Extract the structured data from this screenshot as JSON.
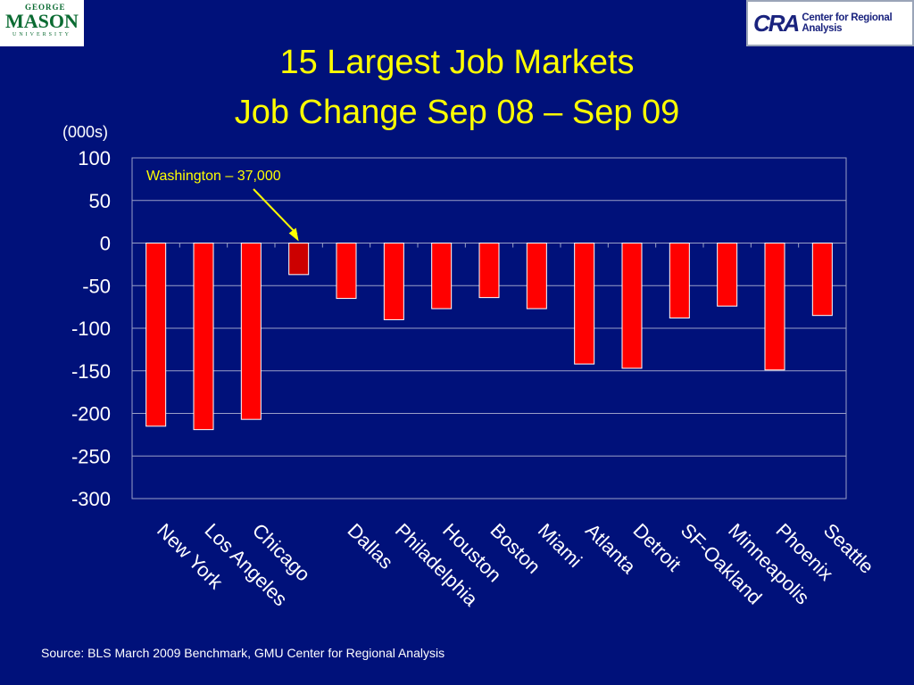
{
  "logos": {
    "gmu": {
      "line1": "GEORGE",
      "line2": "MASON",
      "line3": "UNIVERSITY"
    },
    "cra": {
      "mark": "CRA",
      "text": "Center for Regional Analysis"
    }
  },
  "colors": {
    "background": "#00117a",
    "title": "#ffff00",
    "bar": "#ff0000",
    "highlight_bar": "#cc0000",
    "annotation": "#ffff00",
    "text": "#ffffff"
  },
  "chart_data": {
    "type": "bar",
    "title": "15 Largest Job Markets",
    "subtitle": "Job Change Sep 08 – Sep 09",
    "ylabel": "(000s)",
    "xlabel": "",
    "ylim": [
      -300,
      100
    ],
    "yticks": [
      100,
      50,
      0,
      -50,
      -100,
      -150,
      -200,
      -250,
      -300
    ],
    "grid": true,
    "legend": "none",
    "categories": [
      "New York",
      "Los Angeles",
      "Chicago",
      "",
      "Dallas",
      "Philadelphia",
      "Houston",
      "Boston",
      "Miami",
      "Atlanta",
      "Detroit",
      "SF-Oakland",
      "Minneapolis",
      "Phoenix",
      "Seattle"
    ],
    "values": [
      -215,
      -219,
      -207,
      -37,
      -65,
      -90,
      -77,
      -64,
      -77,
      -142,
      -147,
      -88,
      -74,
      -149,
      -85
    ],
    "highlight_index": 3,
    "annotation": {
      "text": "Washington – 37,000",
      "target_index": 3
    }
  },
  "source": "Source: BLS March 2009 Benchmark, GMU Center for Regional Analysis"
}
